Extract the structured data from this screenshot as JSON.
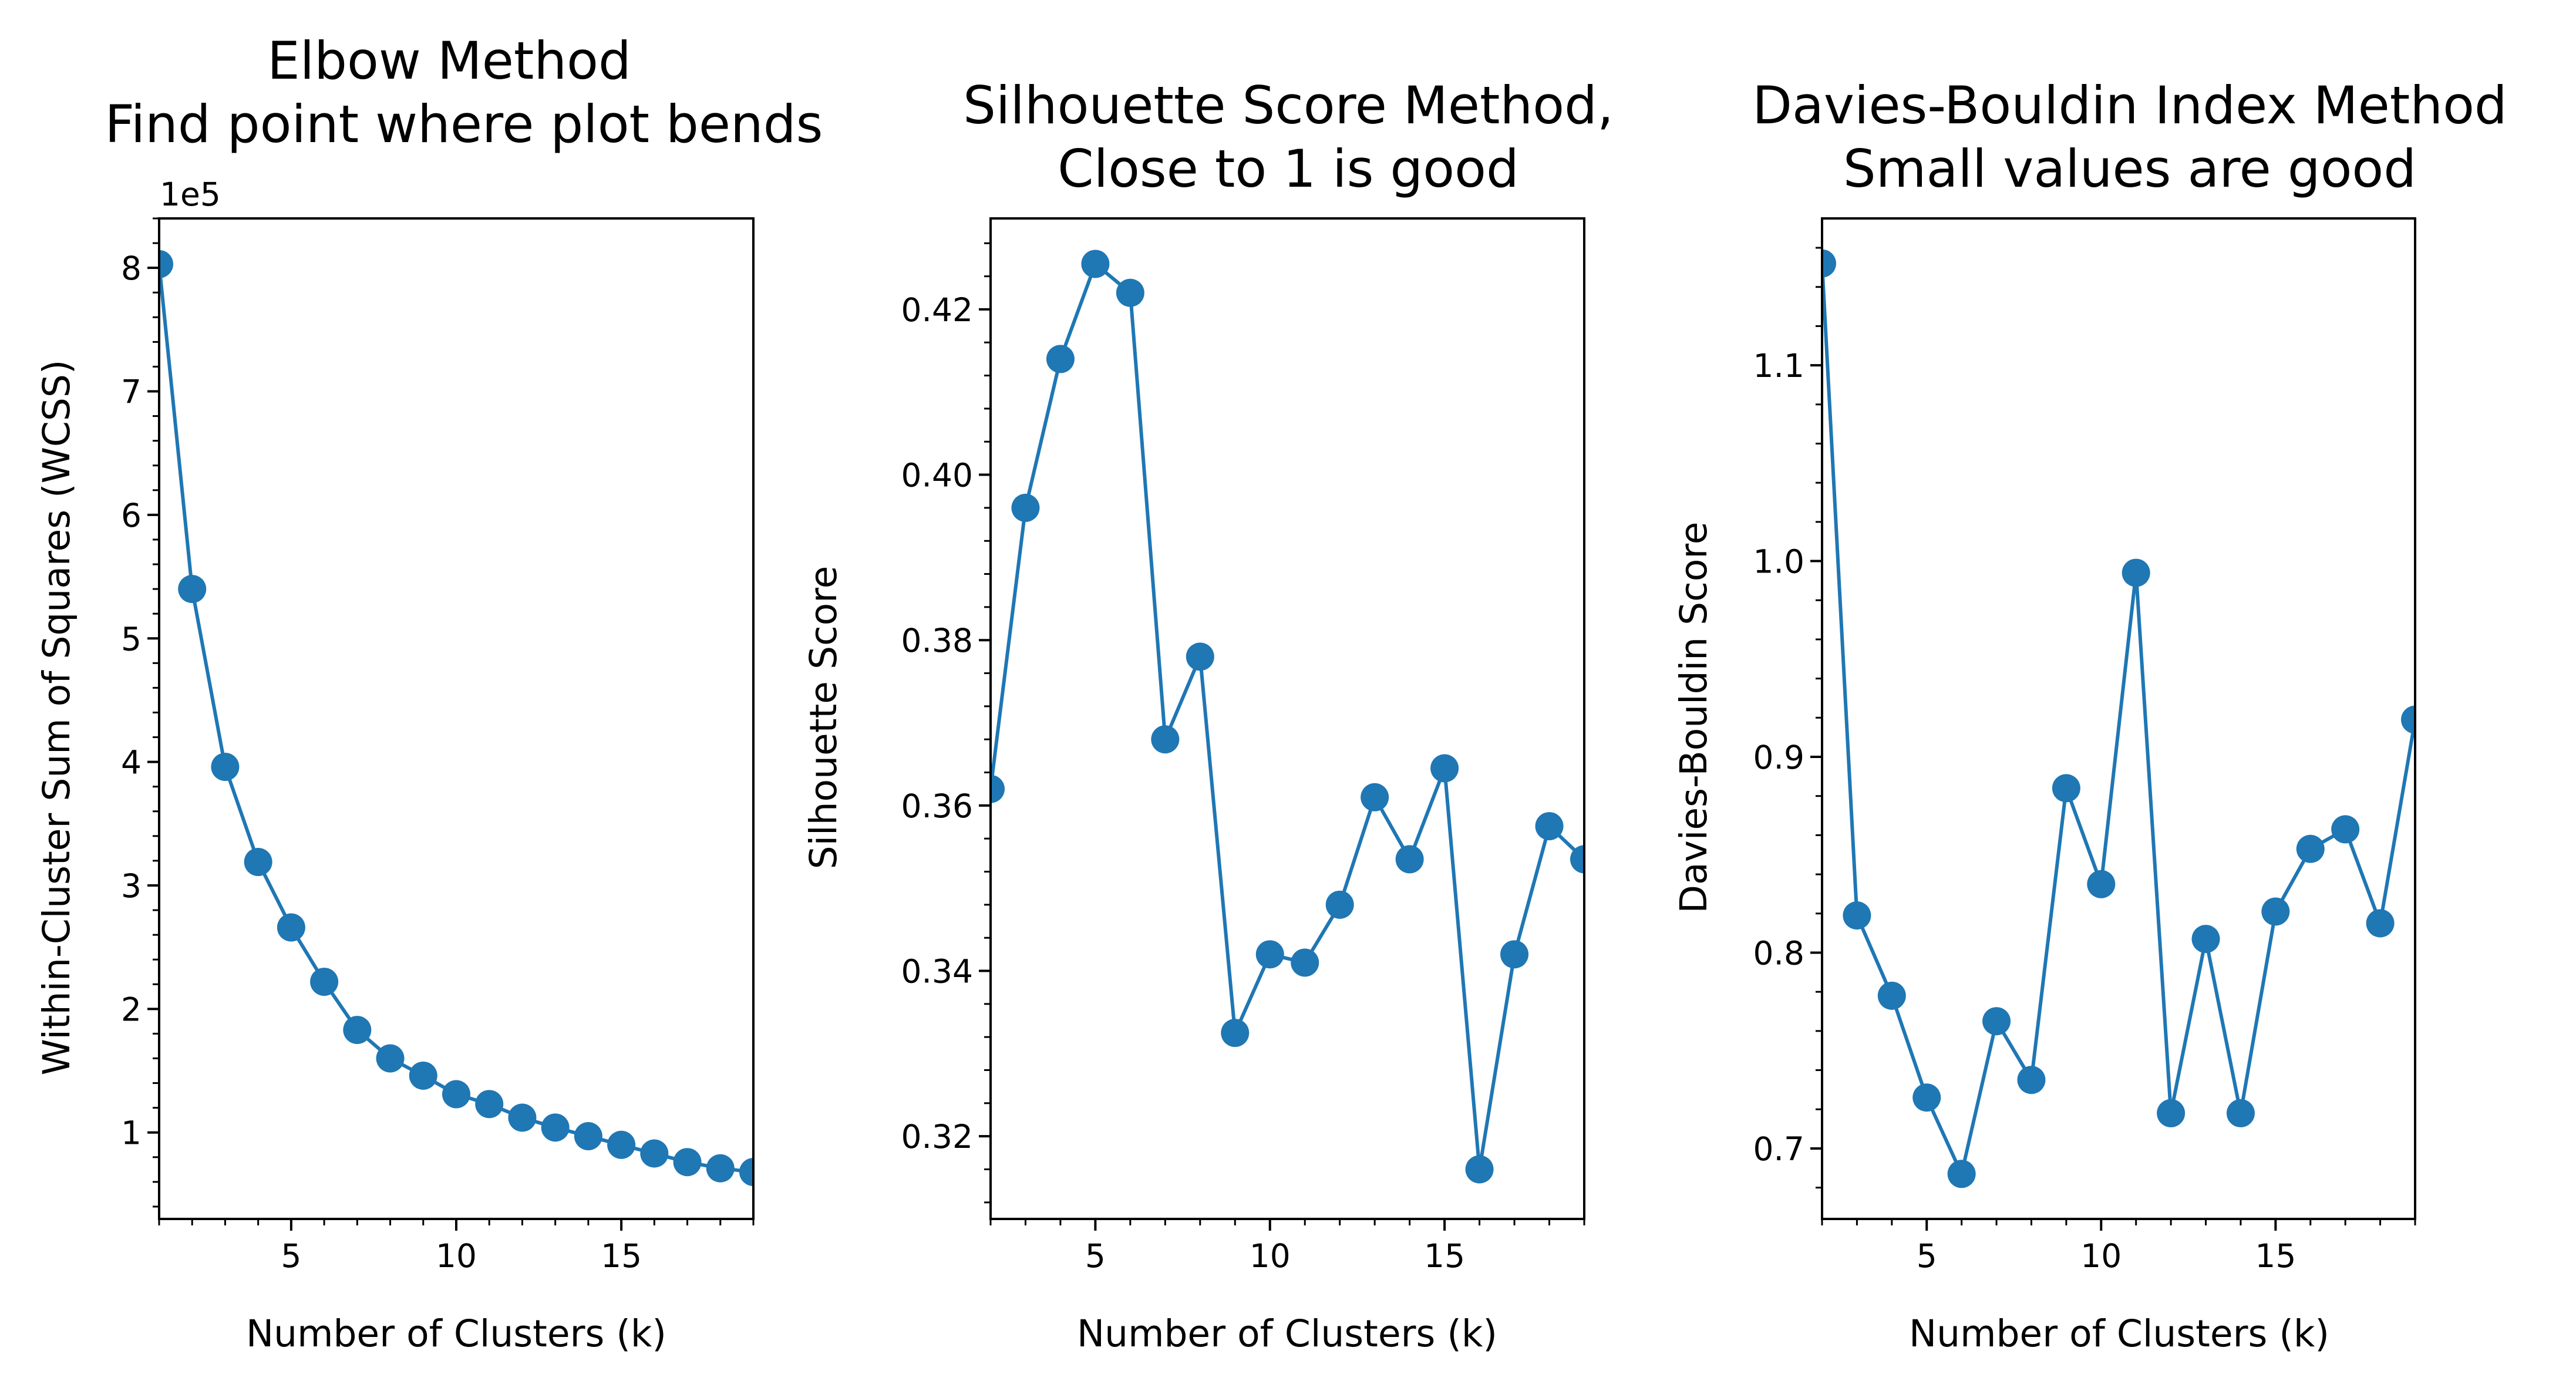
{
  "colors": {
    "series": "#1f77b4",
    "axes": "#000000",
    "background": "#ffffff"
  },
  "chart_data": [
    {
      "type": "line",
      "title": [
        "Elbow Method",
        "Find point where plot bends"
      ],
      "xlabel": "Number of Clusters (k)",
      "ylabel": "Within-Cluster Sum of Squares (WCSS)",
      "y_offset_label": "1e5",
      "xlim": [
        1,
        19
      ],
      "ylim": [
        0.3,
        8.4
      ],
      "xticks": [
        5,
        10,
        15
      ],
      "xtick_labels": [
        "5",
        "10",
        "15"
      ],
      "yticks": [
        1,
        2,
        3,
        4,
        5,
        6,
        7,
        8
      ],
      "ytick_labels": [
        "1",
        "2",
        "3",
        "4",
        "5",
        "6",
        "7",
        "8"
      ],
      "grid": false,
      "markers": true,
      "x": [
        1,
        2,
        3,
        4,
        5,
        6,
        7,
        8,
        9,
        10,
        11,
        12,
        13,
        14,
        15,
        16,
        17,
        18,
        19
      ],
      "values": [
        8.03,
        5.4,
        3.96,
        3.19,
        2.66,
        2.22,
        1.83,
        1.6,
        1.46,
        1.31,
        1.23,
        1.12,
        1.04,
        0.97,
        0.9,
        0.83,
        0.76,
        0.71,
        0.68
      ]
    },
    {
      "type": "line",
      "title": [
        "Silhouette Score Method,",
        "Close to 1 is good"
      ],
      "xlabel": "Number of Clusters (k)",
      "ylabel": "Silhouette Score",
      "xlim": [
        2,
        19
      ],
      "ylim": [
        0.31,
        0.431
      ],
      "xticks": [
        5,
        10,
        15
      ],
      "xtick_labels": [
        "5",
        "10",
        "15"
      ],
      "yticks": [
        0.32,
        0.34,
        0.36,
        0.38,
        0.4,
        0.42
      ],
      "ytick_labels": [
        "0.32",
        "0.34",
        "0.36",
        "0.38",
        "0.40",
        "0.42"
      ],
      "grid": false,
      "markers": true,
      "x": [
        2,
        3,
        4,
        5,
        6,
        7,
        8,
        9,
        10,
        11,
        12,
        13,
        14,
        15,
        16,
        17,
        18,
        19
      ],
      "values": [
        0.362,
        0.396,
        0.414,
        0.4255,
        0.422,
        0.368,
        0.378,
        0.3325,
        0.342,
        0.341,
        0.348,
        0.361,
        0.3535,
        0.3645,
        0.316,
        0.342,
        0.3575,
        0.3535
      ]
    },
    {
      "type": "line",
      "title": [
        "Davies-Bouldin Index Method",
        "Small values are good"
      ],
      "xlabel": "Number of Clusters (k)",
      "ylabel": "Davies-Bouldin Score",
      "xlim": [
        2,
        19
      ],
      "ylim": [
        0.664,
        1.175
      ],
      "xticks": [
        5,
        10,
        15
      ],
      "xtick_labels": [
        "5",
        "10",
        "15"
      ],
      "yticks": [
        0.7,
        0.8,
        0.9,
        1.0,
        1.1
      ],
      "ytick_labels": [
        "0.7",
        "0.8",
        "0.9",
        "1.0",
        "1.1"
      ],
      "grid": false,
      "markers": true,
      "x": [
        2,
        3,
        4,
        5,
        6,
        7,
        8,
        9,
        10,
        11,
        12,
        13,
        14,
        15,
        16,
        17,
        18,
        19
      ],
      "values": [
        1.152,
        0.819,
        0.778,
        0.726,
        0.687,
        0.765,
        0.735,
        0.884,
        0.835,
        0.994,
        0.718,
        0.807,
        0.718,
        0.821,
        0.853,
        0.863,
        0.815,
        0.919
      ]
    }
  ]
}
